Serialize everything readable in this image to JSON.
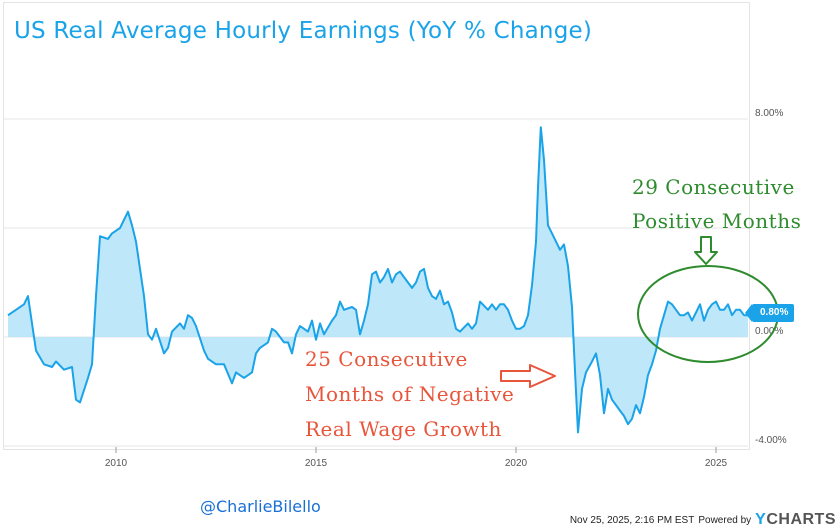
{
  "title": "US Real Average Hourly Earnings (YoY % Change)",
  "annotations": {
    "positive_line1": "29 Consecutive",
    "positive_line2": "Positive Months",
    "negative_line1": "25 Consecutive",
    "negative_line2": "Months of Negative",
    "negative_line3": "Real Wage Growth"
  },
  "current_value_label": "0.80%",
  "watermark": "@CharlieBilello",
  "footer": {
    "timestamp": "Nov 25, 2025, 2:16 PM EST",
    "powered_by": "Powered by",
    "brand_y": "Y",
    "brand_rest": "CHARTS"
  },
  "colors": {
    "line": "#1aa3e8",
    "fill": "#b3e3f8",
    "green": "#2e8b2e",
    "red": "#e8553b"
  },
  "chart_data": {
    "type": "area",
    "ylim": [
      -4,
      8
    ],
    "xlim": [
      2007.3,
      2025.85
    ],
    "y_ticks": [
      {
        "value": 8,
        "label": "8.00%"
      },
      {
        "value": 0,
        "label": "0.00%"
      },
      {
        "value": -4,
        "label": "-4.00%"
      }
    ],
    "x_ticks": [
      {
        "value": 2010,
        "label": "2010"
      },
      {
        "value": 2015,
        "label": "2015"
      },
      {
        "value": 2020,
        "label": "2020"
      },
      {
        "value": 2025,
        "label": "2025"
      }
    ],
    "grid": "horizontal",
    "series": [
      {
        "points": [
          [
            2007.3,
            0.8
          ],
          [
            2007.5,
            1.0
          ],
          [
            2007.7,
            1.2
          ],
          [
            2007.8,
            1.5
          ],
          [
            2007.9,
            0.5
          ],
          [
            2008.0,
            -0.5
          ],
          [
            2008.2,
            -1.0
          ],
          [
            2008.4,
            -1.1
          ],
          [
            2008.5,
            -0.9
          ],
          [
            2008.7,
            -1.2
          ],
          [
            2008.9,
            -1.1
          ],
          [
            2009.0,
            -2.3
          ],
          [
            2009.1,
            -2.4
          ],
          [
            2009.3,
            -1.5
          ],
          [
            2009.4,
            -1.0
          ],
          [
            2009.5,
            1.5
          ],
          [
            2009.6,
            3.7
          ],
          [
            2009.8,
            3.6
          ],
          [
            2009.9,
            3.8
          ],
          [
            2010.1,
            4.0
          ],
          [
            2010.3,
            4.6
          ],
          [
            2010.4,
            4.1
          ],
          [
            2010.5,
            3.5
          ],
          [
            2010.7,
            1.5
          ],
          [
            2010.8,
            0.1
          ],
          [
            2010.9,
            -0.1
          ],
          [
            2011.0,
            0.3
          ],
          [
            2011.2,
            -0.6
          ],
          [
            2011.3,
            -0.4
          ],
          [
            2011.4,
            0.2
          ],
          [
            2011.6,
            0.5
          ],
          [
            2011.7,
            0.3
          ],
          [
            2011.8,
            0.8
          ],
          [
            2011.9,
            0.7
          ],
          [
            2012.0,
            0.4
          ],
          [
            2012.2,
            -0.5
          ],
          [
            2012.3,
            -0.8
          ],
          [
            2012.5,
            -1.0
          ],
          [
            2012.7,
            -1.0
          ],
          [
            2012.9,
            -1.7
          ],
          [
            2013.0,
            -1.3
          ],
          [
            2013.2,
            -1.5
          ],
          [
            2013.4,
            -1.3
          ],
          [
            2013.5,
            -0.6
          ],
          [
            2013.6,
            -0.4
          ],
          [
            2013.8,
            -0.2
          ],
          [
            2013.9,
            0.3
          ],
          [
            2014.0,
            0.2
          ],
          [
            2014.2,
            -0.2
          ],
          [
            2014.3,
            -0.2
          ],
          [
            2014.4,
            -0.6
          ],
          [
            2014.5,
            0.1
          ],
          [
            2014.6,
            0.4
          ],
          [
            2014.8,
            0.2
          ],
          [
            2014.9,
            0.6
          ],
          [
            2015.0,
            -0.1
          ],
          [
            2015.1,
            0.5
          ],
          [
            2015.2,
            0.1
          ],
          [
            2015.4,
            0.6
          ],
          [
            2015.5,
            0.8
          ],
          [
            2015.6,
            1.3
          ],
          [
            2015.7,
            1.0
          ],
          [
            2015.9,
            1.1
          ],
          [
            2016.0,
            1.0
          ],
          [
            2016.1,
            0.1
          ],
          [
            2016.2,
            0.6
          ],
          [
            2016.3,
            1.2
          ],
          [
            2016.4,
            2.3
          ],
          [
            2016.5,
            2.4
          ],
          [
            2016.6,
            2.0
          ],
          [
            2016.7,
            2.2
          ],
          [
            2016.8,
            2.5
          ],
          [
            2016.9,
            2.0
          ],
          [
            2017.0,
            2.3
          ],
          [
            2017.1,
            2.4
          ],
          [
            2017.2,
            2.2
          ],
          [
            2017.3,
            2.0
          ],
          [
            2017.4,
            1.8
          ],
          [
            2017.5,
            2.0
          ],
          [
            2017.6,
            2.4
          ],
          [
            2017.7,
            2.5
          ],
          [
            2017.8,
            1.8
          ],
          [
            2017.9,
            1.5
          ],
          [
            2018.0,
            1.4
          ],
          [
            2018.1,
            1.7
          ],
          [
            2018.2,
            1.2
          ],
          [
            2018.3,
            1.3
          ],
          [
            2018.4,
            0.9
          ],
          [
            2018.5,
            0.3
          ],
          [
            2018.6,
            0.2
          ],
          [
            2018.8,
            0.5
          ],
          [
            2018.9,
            0.3
          ],
          [
            2019.0,
            0.5
          ],
          [
            2019.1,
            1.3
          ],
          [
            2019.3,
            1.0
          ],
          [
            2019.4,
            1.2
          ],
          [
            2019.5,
            1.0
          ],
          [
            2019.6,
            1.2
          ],
          [
            2019.7,
            1.2
          ],
          [
            2019.8,
            1.0
          ],
          [
            2019.9,
            0.6
          ],
          [
            2020.0,
            0.3
          ],
          [
            2020.1,
            0.3
          ],
          [
            2020.2,
            0.4
          ],
          [
            2020.3,
            0.8
          ],
          [
            2020.4,
            1.9
          ],
          [
            2020.5,
            3.5
          ],
          [
            2020.55,
            5.5
          ],
          [
            2020.62,
            7.7
          ],
          [
            2020.7,
            6.5
          ],
          [
            2020.8,
            4.1
          ],
          [
            2020.9,
            3.8
          ],
          [
            2021.0,
            3.5
          ],
          [
            2021.1,
            3.2
          ],
          [
            2021.2,
            3.4
          ],
          [
            2021.3,
            2.6
          ],
          [
            2021.4,
            1.1
          ],
          [
            2021.45,
            -0.5
          ],
          [
            2021.55,
            -3.5
          ],
          [
            2021.65,
            -1.9
          ],
          [
            2021.75,
            -1.3
          ],
          [
            2021.9,
            -0.9
          ],
          [
            2022.0,
            -0.6
          ],
          [
            2022.1,
            -1.4
          ],
          [
            2022.2,
            -2.8
          ],
          [
            2022.3,
            -1.9
          ],
          [
            2022.4,
            -2.3
          ],
          [
            2022.5,
            -2.5
          ],
          [
            2022.6,
            -2.7
          ],
          [
            2022.7,
            -2.9
          ],
          [
            2022.8,
            -3.2
          ],
          [
            2022.9,
            -3.0
          ],
          [
            2023.0,
            -2.5
          ],
          [
            2023.1,
            -2.8
          ],
          [
            2023.2,
            -2.2
          ],
          [
            2023.3,
            -1.4
          ],
          [
            2023.4,
            -1.0
          ],
          [
            2023.5,
            -0.5
          ],
          [
            2023.6,
            0.3
          ],
          [
            2023.7,
            0.8
          ],
          [
            2023.8,
            1.3
          ],
          [
            2023.9,
            1.2
          ],
          [
            2024.0,
            1.0
          ],
          [
            2024.1,
            0.8
          ],
          [
            2024.2,
            0.8
          ],
          [
            2024.3,
            0.9
          ],
          [
            2024.4,
            0.6
          ],
          [
            2024.5,
            0.9
          ],
          [
            2024.6,
            1.2
          ],
          [
            2024.7,
            0.6
          ],
          [
            2024.8,
            1.0
          ],
          [
            2024.9,
            1.2
          ],
          [
            2025.0,
            1.3
          ],
          [
            2025.1,
            1.0
          ],
          [
            2025.2,
            1.0
          ],
          [
            2025.3,
            1.2
          ],
          [
            2025.4,
            0.8
          ],
          [
            2025.5,
            1.0
          ],
          [
            2025.6,
            1.0
          ],
          [
            2025.7,
            0.8
          ],
          [
            2025.8,
            0.8
          ]
        ]
      }
    ]
  }
}
